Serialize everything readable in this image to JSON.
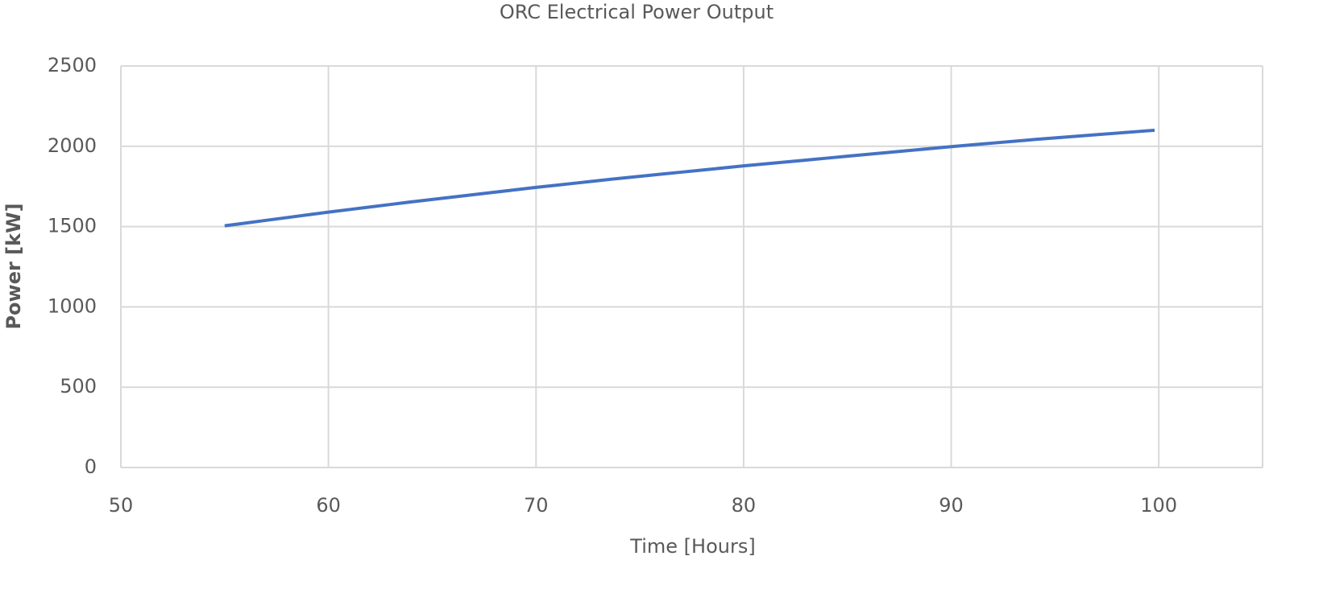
{
  "chart_data": {
    "type": "line",
    "title": "ORC Electrical Power Output",
    "x_label": "Time [Hours]",
    "y_label": "Power [kW]",
    "x": [
      55,
      56,
      57,
      58,
      59,
      60,
      61,
      62,
      63,
      64,
      65,
      66,
      67,
      68,
      69,
      70,
      71,
      72,
      73,
      74,
      75,
      76,
      77,
      78,
      79,
      80,
      81,
      82,
      83,
      84,
      85,
      86,
      87,
      88,
      89,
      90,
      91,
      92,
      93,
      94,
      95,
      96,
      97,
      98,
      99,
      99.8
    ],
    "series": [
      {
        "color": "#4472c4",
        "values": [
          1505,
          1522,
          1539,
          1556,
          1573,
          1590,
          1606,
          1622,
          1638,
          1654,
          1669,
          1684,
          1699,
          1714,
          1729,
          1744,
          1758,
          1772,
          1786,
          1800,
          1813,
          1826,
          1839,
          1852,
          1865,
          1878,
          1890,
          1902,
          1914,
          1926,
          1938,
          1950,
          1962,
          1974,
          1986,
          1998,
          2009,
          2020,
          2031,
          2042,
          2052,
          2062,
          2072,
          2082,
          2092,
          2100
        ]
      }
    ],
    "xlim": [
      50,
      105
    ],
    "xticks": [
      50,
      60,
      70,
      80,
      90,
      100
    ],
    "ylim": [
      0,
      2500
    ],
    "yticks": [
      0,
      500,
      1000,
      1500,
      2000,
      2500
    ],
    "grid": true
  }
}
